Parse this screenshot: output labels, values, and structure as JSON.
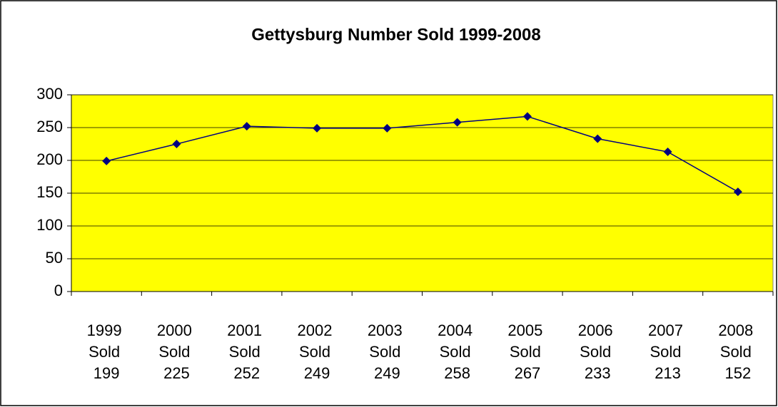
{
  "chart_data": {
    "type": "line",
    "title": "Gettysburg Number Sold 1999-2008",
    "categories": [
      "1999 Sold 199",
      "2000 Sold 225",
      "2001 Sold 252",
      "2002 Sold 249",
      "2003 Sold 249",
      "2004 Sold 258",
      "2005 Sold 267",
      "2006 Sold 233",
      "2007 Sold 213",
      "2008 Sold 152"
    ],
    "series": [
      {
        "name": "Sold",
        "color": "#000080",
        "values": [
          199,
          225,
          252,
          249,
          249,
          258,
          267,
          233,
          213,
          152
        ]
      }
    ],
    "ylim": [
      0,
      300
    ],
    "yticks": [
      0,
      50,
      100,
      150,
      200,
      250,
      300
    ],
    "grid": true,
    "plot_background": "#ffff00"
  }
}
